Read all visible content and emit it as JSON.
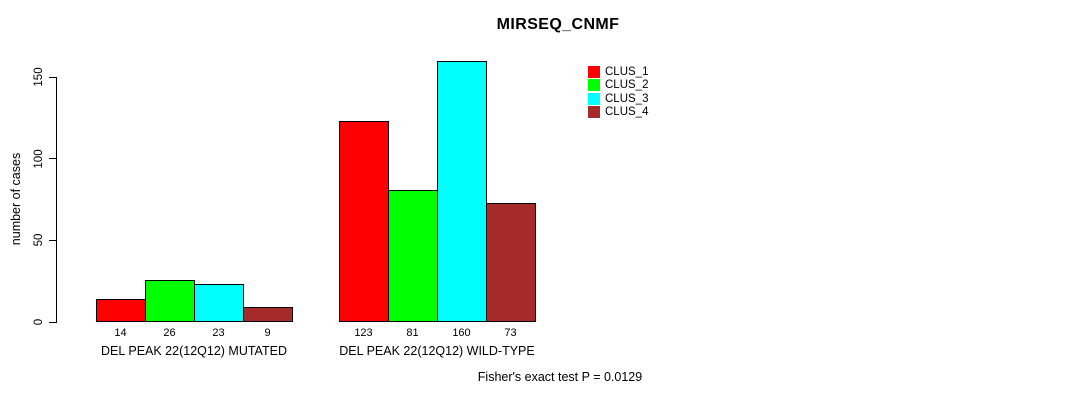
{
  "title": "MIRSEQ_CNMF",
  "footer_annotation": "Fisher's exact test P = 0.0129",
  "colors": {
    "clus_1": "#FF0000",
    "clus_2": "#00FF00",
    "clus_3": "#00FFFF",
    "clus_4": "#A52A2A",
    "axis": "#000000",
    "background": "#FFFFFF"
  },
  "chart_data": {
    "type": "bar",
    "title": "MIRSEQ_CNMF",
    "xlabel": "",
    "ylabel": "number of cases",
    "ylim": [
      0,
      150
    ],
    "yticks": [
      0,
      50,
      100,
      150
    ],
    "grid": false,
    "legend_position": "top-right",
    "categories": [
      "DEL PEAK 22(12Q12) MUTATED",
      "DEL PEAK 22(12Q12) WILD-TYPE"
    ],
    "series": [
      {
        "name": "CLUS_1",
        "color": "#FF0000",
        "values": [
          14,
          123
        ]
      },
      {
        "name": "CLUS_2",
        "color": "#00FF00",
        "values": [
          26,
          81
        ]
      },
      {
        "name": "CLUS_3",
        "color": "#00FFFF",
        "values": [
          23,
          160
        ]
      },
      {
        "name": "CLUS_4",
        "color": "#A52A2A",
        "values": [
          9,
          73
        ]
      }
    ],
    "bar_value_labels": [
      [
        14,
        26,
        23,
        9
      ],
      [
        123,
        81,
        160,
        73
      ]
    ],
    "annotation": "Fisher's exact test P = 0.0129"
  }
}
